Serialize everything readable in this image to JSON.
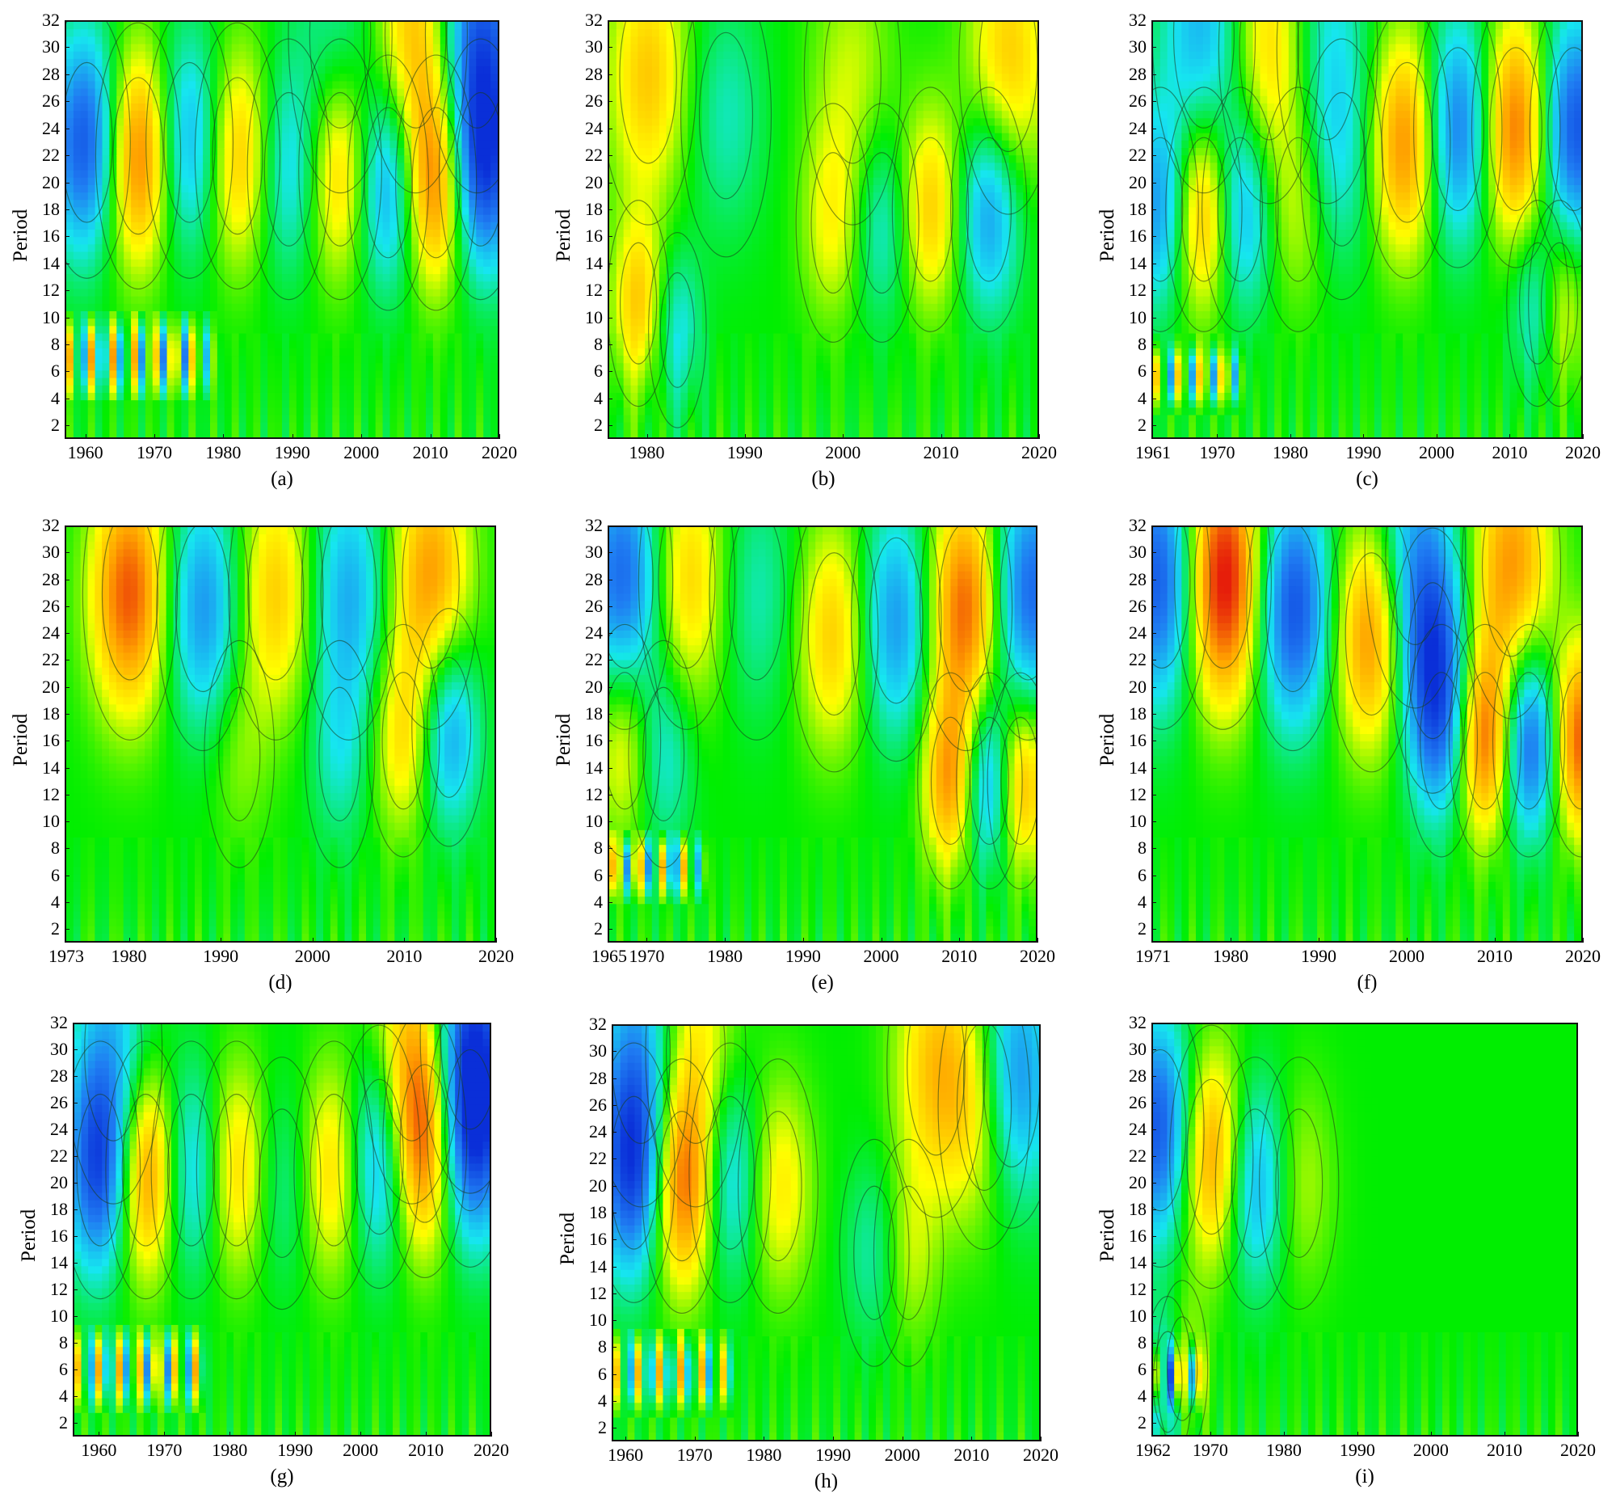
{
  "chart_data": [
    {
      "type": "heatmap",
      "caption": "(a)",
      "ylabel": "Period",
      "xlim": [
        1957,
        2020
      ],
      "ylim": [
        1,
        32
      ],
      "xticks": [
        1960,
        1970,
        1980,
        1990,
        2000,
        2010,
        2020
      ],
      "xtick_labels": [
        "1960",
        "1970",
        "1980",
        "1990",
        "2000",
        "2010",
        "2020"
      ],
      "yticks": [
        2,
        4,
        6,
        8,
        10,
        12,
        14,
        16,
        18,
        20,
        22,
        24,
        26,
        28,
        30,
        32
      ],
      "high_period_cycle_years": 14.5,
      "high_period_phase_year": 1967.5,
      "high_period_band": [
        17,
        28
      ],
      "short_period_band": [
        5,
        9
      ],
      "short_period_until": 1977,
      "blobs": [
        {
          "x": 1960,
          "y": 23,
          "v": -1.0
        },
        {
          "x": 1967.5,
          "y": 22,
          "v": 1.0
        },
        {
          "x": 1975,
          "y": 23,
          "v": -0.7
        },
        {
          "x": 1982,
          "y": 22,
          "v": 0.7
        },
        {
          "x": 1989.5,
          "y": 21,
          "v": -0.5
        },
        {
          "x": 1997,
          "y": 21,
          "v": 0.7
        },
        {
          "x": 2004,
          "y": 20,
          "v": -0.8
        },
        {
          "x": 2011,
          "y": 20,
          "v": 1.0
        },
        {
          "x": 2017.5,
          "y": 21,
          "v": -1.0
        },
        {
          "x": 2008,
          "y": 31,
          "v": 0.7
        },
        {
          "x": 2017,
          "y": 31,
          "v": -0.9
        },
        {
          "x": 1997,
          "y": 31,
          "v": -0.3
        }
      ]
    },
    {
      "type": "heatmap",
      "caption": "(b)",
      "ylabel": "Period",
      "xlim": [
        1976,
        2020
      ],
      "ylim": [
        1,
        32
      ],
      "xticks": [
        1980,
        1990,
        2000,
        2010,
        2020
      ],
      "xtick_labels": [
        "1980",
        "1990",
        "2000",
        "2010",
        "2020"
      ],
      "yticks": [
        2,
        4,
        6,
        8,
        10,
        12,
        14,
        16,
        18,
        20,
        22,
        24,
        26,
        28,
        30,
        32
      ],
      "blobs": [
        {
          "x": 1980,
          "y": 28,
          "v": 0.6
        },
        {
          "x": 1979,
          "y": 11,
          "v": 0.6
        },
        {
          "x": 1983,
          "y": 9,
          "v": -0.4
        },
        {
          "x": 1988,
          "y": 25,
          "v": -0.3
        },
        {
          "x": 1999,
          "y": 17,
          "v": 0.4
        },
        {
          "x": 2004,
          "y": 17,
          "v": -0.4
        },
        {
          "x": 2009,
          "y": 18,
          "v": 0.6
        },
        {
          "x": 2015,
          "y": 18,
          "v": -0.7
        },
        {
          "x": 2017,
          "y": 29,
          "v": 0.6
        },
        {
          "x": 2001,
          "y": 28,
          "v": 0.3
        }
      ]
    },
    {
      "type": "heatmap",
      "caption": "(c)",
      "ylabel": "Period",
      "xlim": [
        1961,
        2020
      ],
      "ylim": [
        1,
        32
      ],
      "xticks": [
        1961,
        1970,
        1980,
        1990,
        2000,
        2010,
        2020
      ],
      "xtick_labels": [
        "1961",
        "1970",
        "1980",
        "1990",
        "2000",
        "2010",
        "2020"
      ],
      "yticks": [
        2,
        4,
        6,
        8,
        10,
        12,
        14,
        16,
        18,
        20,
        22,
        24,
        26,
        28,
        30,
        32
      ],
      "short_period_band": [
        4,
        7
      ],
      "short_period_until": 1972,
      "blobs": [
        {
          "x": 1962,
          "y": 18,
          "v": -0.7
        },
        {
          "x": 1968,
          "y": 18,
          "v": 0.9
        },
        {
          "x": 1973,
          "y": 18,
          "v": -0.7
        },
        {
          "x": 1968,
          "y": 31,
          "v": -0.6
        },
        {
          "x": 1977,
          "y": 30,
          "v": 0.6
        },
        {
          "x": 1985,
          "y": 30,
          "v": -0.4
        },
        {
          "x": 1996,
          "y": 23,
          "v": 0.9
        },
        {
          "x": 2003,
          "y": 24,
          "v": -0.9
        },
        {
          "x": 2011,
          "y": 24,
          "v": 1.0
        },
        {
          "x": 2019,
          "y": 24,
          "v": -1.0
        },
        {
          "x": 1987,
          "y": 21,
          "v": -0.3
        },
        {
          "x": 1981,
          "y": 18,
          "v": 0.3
        },
        {
          "x": 2014,
          "y": 11,
          "v": -0.5
        },
        {
          "x": 2017,
          "y": 11,
          "v": 0.5
        }
      ]
    },
    {
      "type": "heatmap",
      "caption": "(d)",
      "ylabel": "Period",
      "xlim": [
        1973,
        2020
      ],
      "ylim": [
        1,
        32
      ],
      "xticks": [
        1973,
        1980,
        1990,
        2000,
        2010,
        2020
      ],
      "xtick_labels": [
        "1973",
        "1980",
        "1990",
        "2000",
        "2010",
        "2020"
      ],
      "yticks": [
        2,
        4,
        6,
        8,
        10,
        12,
        14,
        16,
        18,
        20,
        22,
        24,
        26,
        28,
        30,
        32
      ],
      "blobs": [
        {
          "x": 1980,
          "y": 27,
          "v": 1.0
        },
        {
          "x": 1988,
          "y": 26,
          "v": -0.7
        },
        {
          "x": 1996,
          "y": 27,
          "v": 0.6
        },
        {
          "x": 2004,
          "y": 27,
          "v": -0.6
        },
        {
          "x": 2013,
          "y": 28,
          "v": 0.8
        },
        {
          "x": 2010,
          "y": 16,
          "v": 0.5
        },
        {
          "x": 2015,
          "y": 17,
          "v": -0.7
        },
        {
          "x": 2003,
          "y": 15,
          "v": -0.3
        },
        {
          "x": 1992,
          "y": 15,
          "v": 0.2
        }
      ]
    },
    {
      "type": "heatmap",
      "caption": "(e)",
      "ylabel": "Period",
      "xlim": [
        1965,
        2020
      ],
      "ylim": [
        1,
        32
      ],
      "xticks": [
        1965,
        1970,
        1980,
        1990,
        2000,
        2010,
        2020
      ],
      "xtick_labels": [
        "1965",
        "1970",
        "1980",
        "1990",
        "2000",
        "2010",
        "2020"
      ],
      "yticks": [
        2,
        4,
        6,
        8,
        10,
        12,
        14,
        16,
        18,
        20,
        22,
        24,
        26,
        28,
        30,
        32
      ],
      "short_period_band": [
        5,
        8
      ],
      "short_period_until": 1976,
      "blobs": [
        {
          "x": 1967,
          "y": 28,
          "v": -0.9
        },
        {
          "x": 1975,
          "y": 28,
          "v": 0.6
        },
        {
          "x": 1967,
          "y": 16,
          "v": 0.5
        },
        {
          "x": 1972,
          "y": 15,
          "v": -0.4
        },
        {
          "x": 1984,
          "y": 27,
          "v": -0.3
        },
        {
          "x": 1994,
          "y": 24,
          "v": 0.6
        },
        {
          "x": 2002,
          "y": 25,
          "v": -0.7
        },
        {
          "x": 2011,
          "y": 26,
          "v": 1.0
        },
        {
          "x": 2019,
          "y": 27,
          "v": -0.9
        },
        {
          "x": 2009,
          "y": 13,
          "v": 0.8
        },
        {
          "x": 2014,
          "y": 13,
          "v": -0.8
        },
        {
          "x": 2018,
          "y": 13,
          "v": 0.8
        }
      ]
    },
    {
      "type": "heatmap",
      "caption": "(f)",
      "ylabel": "Period",
      "xlim": [
        1971,
        2020
      ],
      "ylim": [
        1,
        32
      ],
      "xticks": [
        1971,
        1980,
        1990,
        2000,
        2010,
        2020
      ],
      "xtick_labels": [
        "1971",
        "1980",
        "1990",
        "2000",
        "2010",
        "2020"
      ],
      "yticks": [
        2,
        4,
        6,
        8,
        10,
        12,
        14,
        16,
        18,
        20,
        22,
        24,
        26,
        28,
        30,
        32
      ],
      "blobs": [
        {
          "x": 1972,
          "y": 28,
          "v": -1.0
        },
        {
          "x": 1979,
          "y": 28,
          "v": 1.3
        },
        {
          "x": 1987,
          "y": 26,
          "v": -1.0
        },
        {
          "x": 1996,
          "y": 24,
          "v": 0.9
        },
        {
          "x": 2003,
          "y": 22,
          "v": -0.8
        },
        {
          "x": 2012,
          "y": 29,
          "v": 0.8
        },
        {
          "x": 2004,
          "y": 16,
          "v": -0.5
        },
        {
          "x": 2009,
          "y": 16,
          "v": 1.0
        },
        {
          "x": 2014,
          "y": 16,
          "v": -1.0
        },
        {
          "x": 2020,
          "y": 16,
          "v": 1.0
        },
        {
          "x": 2001,
          "y": 30,
          "v": -0.6
        }
      ]
    },
    {
      "type": "heatmap",
      "caption": "(g)",
      "ylabel": "Period",
      "xlim": [
        1956,
        2020
      ],
      "ylim": [
        1,
        32
      ],
      "xticks": [
        1960,
        1970,
        1980,
        1990,
        2000,
        2010,
        2020
      ],
      "xtick_labels": [
        "1960",
        "1970",
        "1980",
        "1990",
        "2000",
        "2010",
        "2020"
      ],
      "yticks": [
        2,
        4,
        6,
        8,
        10,
        12,
        14,
        16,
        18,
        20,
        22,
        24,
        26,
        28,
        30,
        32
      ],
      "short_period_band": [
        4,
        8
      ],
      "short_period_until": 1975,
      "blobs": [
        {
          "x": 1960,
          "y": 21,
          "v": -1.0
        },
        {
          "x": 1967,
          "y": 21,
          "v": 1.0
        },
        {
          "x": 1974,
          "y": 21,
          "v": -0.6
        },
        {
          "x": 1981,
          "y": 21,
          "v": 0.6
        },
        {
          "x": 1988,
          "y": 20,
          "v": -0.3
        },
        {
          "x": 1996,
          "y": 21,
          "v": 0.6
        },
        {
          "x": 2003,
          "y": 22,
          "v": -0.8
        },
        {
          "x": 2010,
          "y": 23,
          "v": 1.0
        },
        {
          "x": 2017,
          "y": 24,
          "v": -1.0
        },
        {
          "x": 1962,
          "y": 30,
          "v": -0.5
        },
        {
          "x": 2008,
          "y": 30,
          "v": 0.6
        },
        {
          "x": 2017,
          "y": 31,
          "v": -0.8
        }
      ]
    },
    {
      "type": "heatmap",
      "caption": "(h)",
      "ylabel": "Period",
      "xlim": [
        1958,
        2020
      ],
      "ylim": [
        1,
        32
      ],
      "xticks": [
        1960,
        1970,
        1980,
        1990,
        2000,
        2010,
        2020
      ],
      "xtick_labels": [
        "1960",
        "1970",
        "1980",
        "1990",
        "2000",
        "2010",
        "2020"
      ],
      "yticks": [
        2,
        4,
        6,
        8,
        10,
        12,
        14,
        16,
        18,
        20,
        22,
        24,
        26,
        28,
        30,
        32
      ],
      "short_period_band": [
        4,
        8
      ],
      "short_period_until": 1974,
      "blobs": [
        {
          "x": 1961,
          "y": 21,
          "v": -1.0
        },
        {
          "x": 1968,
          "y": 20,
          "v": 1.0
        },
        {
          "x": 1975,
          "y": 21,
          "v": -0.6
        },
        {
          "x": 1982,
          "y": 20,
          "v": 0.5
        },
        {
          "x": 1962,
          "y": 30,
          "v": -0.6
        },
        {
          "x": 1970,
          "y": 30,
          "v": 0.5
        },
        {
          "x": 2005,
          "y": 29,
          "v": 0.6
        },
        {
          "x": 2012,
          "y": 26,
          "v": 0.6
        },
        {
          "x": 2016,
          "y": 28,
          "v": -0.9
        },
        {
          "x": 2001,
          "y": 15,
          "v": 0.3
        },
        {
          "x": 1996,
          "y": 15,
          "v": -0.3
        }
      ]
    },
    {
      "type": "heatmap",
      "caption": "(i)",
      "ylabel": "Period",
      "xlim": [
        1962,
        2020
      ],
      "ylim": [
        1,
        32
      ],
      "xticks": [
        1962,
        1970,
        1980,
        1990,
        2000,
        2010,
        2020
      ],
      "xtick_labels": [
        "1962",
        "1970",
        "1980",
        "1990",
        "2000",
        "2010",
        "2020"
      ],
      "yticks": [
        2,
        4,
        6,
        8,
        10,
        12,
        14,
        16,
        18,
        20,
        22,
        24,
        26,
        28,
        30,
        32
      ],
      "short_period_band": [
        4,
        7
      ],
      "short_period_until": 1968,
      "blobs": [
        {
          "x": 1963,
          "y": 24,
          "v": -1.0
        },
        {
          "x": 1970,
          "y": 22,
          "v": 0.9
        },
        {
          "x": 1976,
          "y": 20,
          "v": -0.7
        },
        {
          "x": 1982,
          "y": 20,
          "v": 0.3
        },
        {
          "x": 1964,
          "y": 5,
          "v": -0.6
        },
        {
          "x": 1966,
          "y": 6,
          "v": 0.4
        }
      ]
    }
  ],
  "colors": {
    "colormap": [
      "#0a2fd8",
      "#1f7cf2",
      "#16e6f0",
      "#00ee00",
      "#ffff00",
      "#ffa000",
      "#e61e0a"
    ],
    "contour": "#1a3b1a",
    "axis": "#111111"
  }
}
